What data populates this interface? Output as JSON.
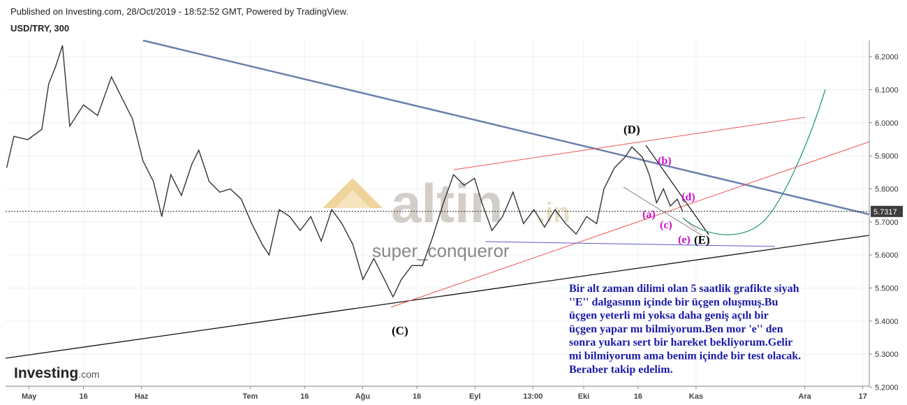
{
  "header": {
    "published": "Published on Investing.com, 28/Oct/2019 - 18:52:52 GMT, Powered by TradingView.",
    "logo_main": "Investing",
    "logo_suffix": ".com"
  },
  "chart_data": {
    "type": "line",
    "title": "USD/TRY, 300",
    "color": "#333333",
    "x": [
      114.8,
      116.8,
      120.6,
      124.5,
      126.4,
      128.3,
      130.2,
      132.2,
      136.0,
      139.9,
      143.7,
      146.6,
      149.5,
      152.4,
      155.3,
      157.6,
      160.1,
      163.0,
      165.9,
      167.8,
      170.7,
      173.6,
      176.5,
      179.5,
      182.4,
      185.3,
      187.2,
      190.0,
      192.9,
      195.8,
      198.7,
      201.6,
      204.5,
      207.3,
      210.3,
      213.1,
      216.1,
      219.0,
      221.4,
      223.7,
      226.6,
      229.5,
      232.3,
      235.3,
      238.1,
      241.0,
      243.9,
      245.9,
      248.7,
      251.6,
      254.5,
      257.4,
      260.3,
      263.2,
      266.1,
      269.0,
      271.9,
      274.8,
      277.6,
      279.6,
      282.5,
      285.4,
      287.3,
      290.2,
      292.1,
      294.1,
      296.0,
      297.9,
      299.8,
      301.3
    ],
    "values": [
      5.864,
      5.959,
      5.949,
      5.98,
      6.118,
      6.17,
      6.234,
      5.99,
      6.054,
      6.022,
      6.139,
      6.075,
      6.012,
      5.885,
      5.822,
      5.716,
      5.843,
      5.78,
      5.875,
      5.917,
      5.822,
      5.79,
      5.8,
      5.769,
      5.695,
      5.632,
      5.6,
      5.737,
      5.716,
      5.674,
      5.716,
      5.642,
      5.737,
      5.695,
      5.632,
      5.526,
      5.589,
      5.526,
      5.473,
      5.526,
      5.568,
      5.568,
      5.653,
      5.758,
      5.843,
      5.811,
      5.832,
      5.758,
      5.674,
      5.716,
      5.79,
      5.695,
      5.737,
      5.684,
      5.737,
      5.695,
      5.663,
      5.716,
      5.695,
      5.8,
      5.864,
      5.896,
      5.927,
      5.896,
      5.843,
      5.758,
      5.8,
      5.748,
      5.769,
      5.732
    ],
    "xlim": [
      114.5,
      352.8
    ],
    "xticks": [
      {
        "value": 121,
        "label": "May"
      },
      {
        "value": 136,
        "label": "16"
      },
      {
        "value": 152,
        "label": "Haz"
      },
      {
        "value": 182,
        "label": "Tem"
      },
      {
        "value": 197,
        "label": "16"
      },
      {
        "value": 213,
        "label": "Ağu"
      },
      {
        "value": 228,
        "label": "16"
      },
      {
        "value": 244,
        "label": "Eyl"
      },
      {
        "value": 260,
        "label": "13:00"
      },
      {
        "value": 274,
        "label": "Eki"
      },
      {
        "value": 289,
        "label": "16"
      },
      {
        "value": 305,
        "label": "Kas"
      },
      {
        "value": 335,
        "label": "Ara"
      },
      {
        "value": 351,
        "label": "17"
      }
    ],
    "ylim": [
      5.203,
      6.249
    ],
    "yticks": [
      {
        "value": 5.2,
        "label": "5.2000"
      },
      {
        "value": 5.3,
        "label": "5.3000"
      },
      {
        "value": 5.4,
        "label": "5.4000"
      },
      {
        "value": 5.5,
        "label": "5.5000"
      },
      {
        "value": 5.6,
        "label": "5.6000"
      },
      {
        "value": 5.7,
        "label": "5.7000"
      },
      {
        "value": 5.8,
        "label": "5.8000"
      },
      {
        "value": 5.9,
        "label": "5.9000"
      },
      {
        "value": 6.0,
        "label": "6.0000"
      },
      {
        "value": 6.1,
        "label": "6.1000"
      },
      {
        "value": 6.2,
        "label": "6.2000"
      }
    ],
    "last_price": 5.7317,
    "grid": true,
    "annotations": {
      "D": "(D)",
      "C": "(C)",
      "E": "(E)",
      "a": "(a)",
      "b": "(b)",
      "c": "(c)",
      "d": "(d)",
      "e": "(e)"
    },
    "watermark": {
      "brand": "altin",
      "domain": ".in",
      "author": "super_conqueror"
    },
    "comment": [
      "Bir alt zaman dilimi olan 5 saatlik grafikte siyah",
      "''E'' dalgasının içinde bir üçgen oluşmuş.Bu",
      "üçgen yeterli mi yoksa daha geniş açılı bir",
      "üçgen yapar mı bilmiyorum.Ben mor 'e'' den",
      "sonra yukarı sert bir hareket bekliyorum.Gelir",
      "mi bilmiyorum ama benim içinde bir test olacak.",
      "Beraber takip edelim."
    ]
  }
}
